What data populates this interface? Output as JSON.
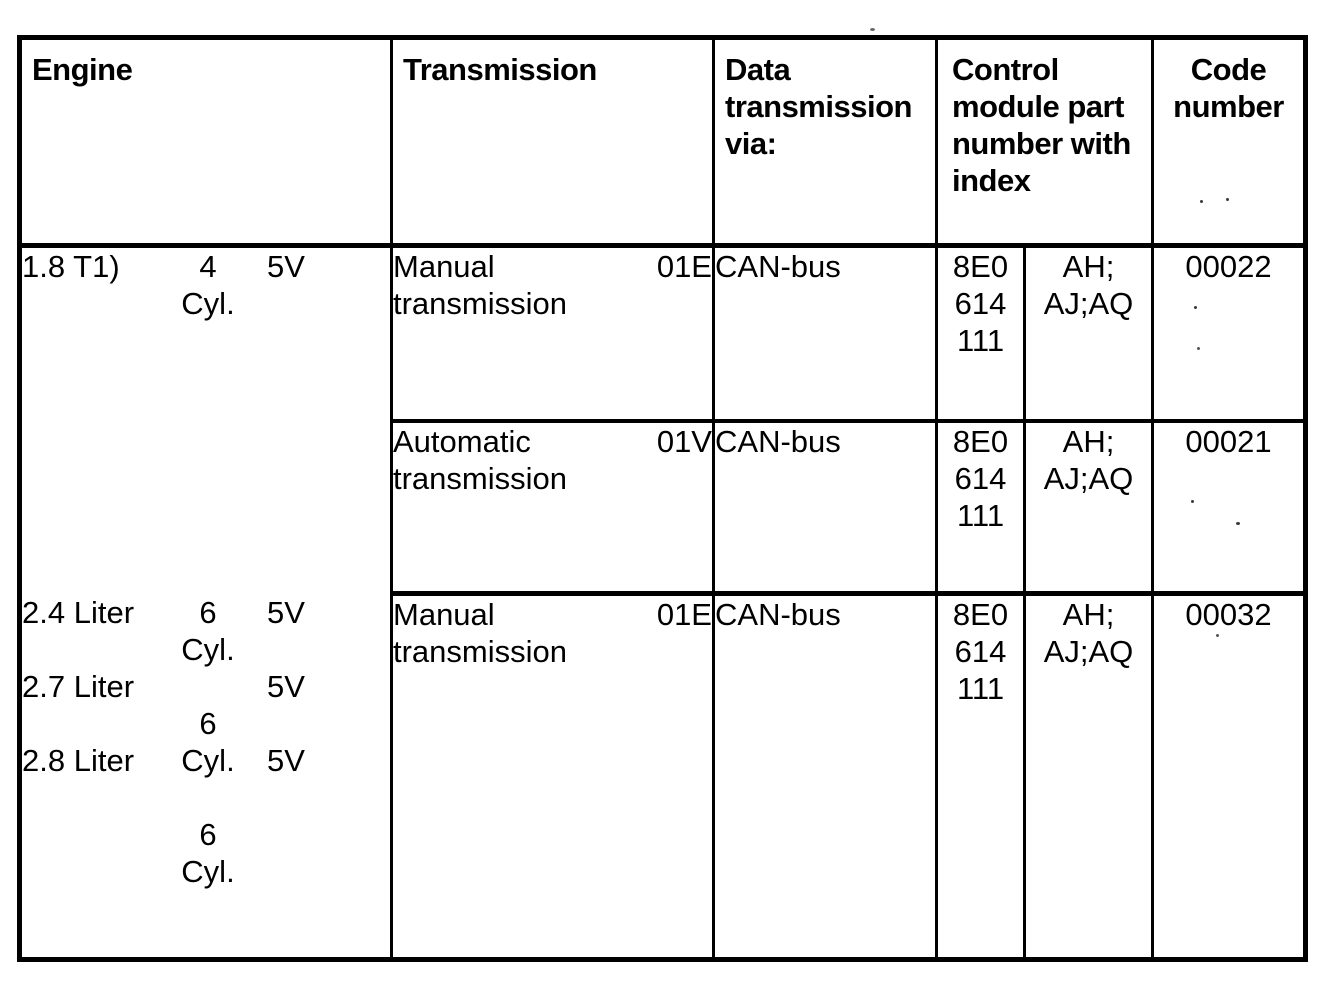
{
  "table": {
    "headers": {
      "engine": "Engine",
      "transmission": "Transmission",
      "data_via": "Data transmission via:",
      "control_module": "Control module part number with index",
      "code_number": "Code number"
    },
    "engine_groups": [
      {
        "rows": [
          [
            "1.8 T1)",
            "4",
            "5V"
          ],
          [
            "",
            "Cyl.",
            ""
          ]
        ]
      },
      {
        "rows": [
          [
            "2.4 Liter",
            "6",
            "5V"
          ],
          [
            "",
            "Cyl.",
            ""
          ],
          [
            "2.7 Liter",
            "",
            "5V"
          ],
          [
            "",
            "6",
            ""
          ],
          [
            "2.8 Liter",
            "Cyl.",
            "5V"
          ],
          [
            "",
            "",
            ""
          ],
          [
            "",
            "6",
            ""
          ],
          [
            "",
            "Cyl.",
            ""
          ]
        ]
      }
    ],
    "rows": [
      {
        "transmission_name": "Manual transmission",
        "transmission_code": "01E",
        "data_via": "CAN-bus",
        "part_number": "8E0 614 111",
        "part_index": "AH; AJ;AQ",
        "code_number": "00022"
      },
      {
        "transmission_name": "Automatic transmission",
        "transmission_code": "01V",
        "data_via": "CAN-bus",
        "part_number": "8E0 614 111",
        "part_index": "AH; AJ;AQ",
        "code_number": "00021"
      },
      {
        "transmission_name": "Manual transmission",
        "transmission_code": "01E",
        "data_via": "CAN-bus",
        "part_number": "8E0 614 111",
        "part_index": "AH; AJ;AQ",
        "code_number": "00032"
      }
    ],
    "colors": {
      "border": "#000000",
      "text": "#000000",
      "background": "#ffffff"
    }
  }
}
